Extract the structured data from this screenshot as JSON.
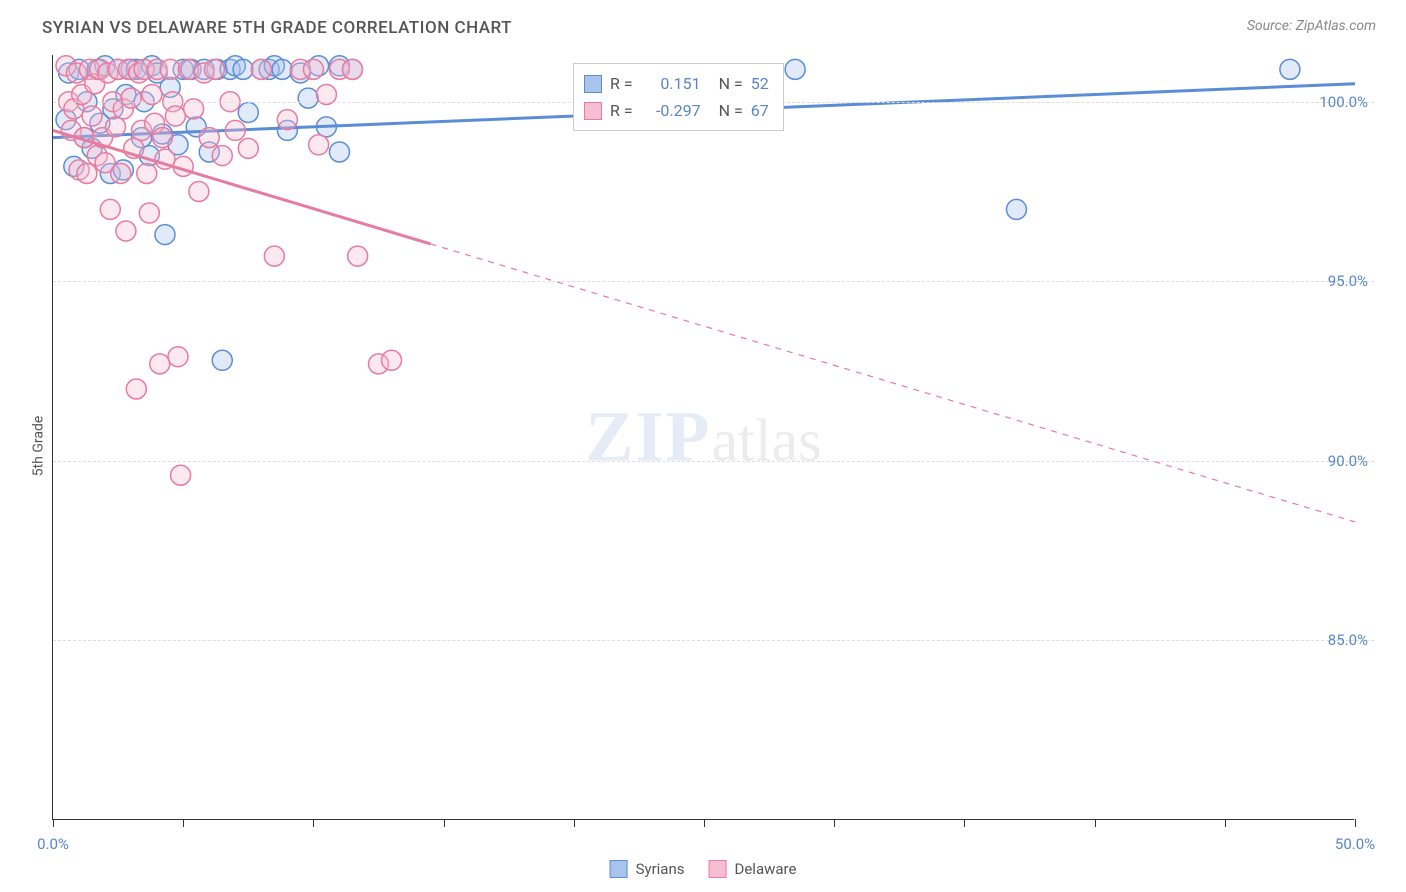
{
  "title": "SYRIAN VS DELAWARE 5TH GRADE CORRELATION CHART",
  "source": "Source: ZipAtlas.com",
  "y_axis_label": "5th Grade",
  "watermark_zip": "ZIP",
  "watermark_atlas": "atlas",
  "chart": {
    "type": "scatter",
    "xlim": [
      0,
      50
    ],
    "ylim": [
      80,
      101.3
    ],
    "x_ticks": [
      0,
      5,
      10,
      15,
      20,
      25,
      30,
      35,
      40,
      45,
      50
    ],
    "x_tick_labels": {
      "0": "0.0%",
      "50": "50.0%"
    },
    "y_ticks": [
      85,
      90,
      95,
      100
    ],
    "y_tick_labels": [
      "85.0%",
      "90.0%",
      "95.0%",
      "100.0%"
    ],
    "grid_color": "#dddddd",
    "background_color": "#ffffff",
    "marker_radius": 10,
    "marker_fill_opacity": 0.35,
    "marker_stroke_width": 1.5,
    "series": [
      {
        "name": "Syrians",
        "color": "#5b8dd6",
        "fill": "#a8c4ea",
        "R": "0.151",
        "N": "52",
        "trend": {
          "x1": 0,
          "y1": 99.0,
          "x2": 50,
          "y2": 100.5,
          "solid_until_x": 50,
          "width": 3
        },
        "points": [
          [
            0.5,
            99.5
          ],
          [
            0.6,
            100.8
          ],
          [
            0.8,
            98.2
          ],
          [
            1.0,
            100.9
          ],
          [
            1.2,
            99.0
          ],
          [
            1.3,
            100.0
          ],
          [
            1.5,
            98.7
          ],
          [
            1.7,
            100.9
          ],
          [
            1.8,
            99.4
          ],
          [
            2.0,
            101.0
          ],
          [
            2.2,
            98.0
          ],
          [
            2.3,
            99.8
          ],
          [
            2.5,
            100.9
          ],
          [
            2.7,
            98.1
          ],
          [
            2.8,
            100.2
          ],
          [
            3.0,
            100.9
          ],
          [
            3.2,
            100.9
          ],
          [
            3.4,
            99.0
          ],
          [
            3.5,
            100.0
          ],
          [
            3.7,
            98.5
          ],
          [
            3.8,
            101.0
          ],
          [
            4.0,
            100.8
          ],
          [
            4.2,
            99.1
          ],
          [
            4.3,
            96.3
          ],
          [
            4.5,
            100.4
          ],
          [
            4.8,
            98.8
          ],
          [
            5.0,
            100.9
          ],
          [
            5.3,
            100.9
          ],
          [
            5.5,
            99.3
          ],
          [
            5.8,
            100.9
          ],
          [
            6.0,
            98.6
          ],
          [
            6.3,
            100.9
          ],
          [
            6.5,
            92.8
          ],
          [
            6.8,
            100.9
          ],
          [
            7.0,
            101.0
          ],
          [
            7.3,
            100.9
          ],
          [
            7.5,
            99.7
          ],
          [
            8.0,
            100.9
          ],
          [
            8.3,
            100.9
          ],
          [
            8.5,
            101.0
          ],
          [
            8.8,
            100.9
          ],
          [
            9.0,
            99.2
          ],
          [
            9.5,
            100.8
          ],
          [
            9.8,
            100.1
          ],
          [
            10.2,
            101.0
          ],
          [
            10.5,
            99.3
          ],
          [
            11.0,
            98.6
          ],
          [
            11.0,
            101.0
          ],
          [
            11.5,
            100.9
          ],
          [
            28.5,
            100.9
          ],
          [
            37.0,
            97.0
          ],
          [
            47.5,
            100.9
          ]
        ]
      },
      {
        "name": "Delaware",
        "color": "#e77ba0",
        "fill": "#f7bdd0",
        "R": "-0.297",
        "N": "67",
        "trend": {
          "x1": 0,
          "y1": 99.2,
          "x2": 50,
          "y2": 88.3,
          "solid_until_x": 14.5,
          "width": 3
        },
        "points": [
          [
            0.5,
            101.0
          ],
          [
            0.6,
            100.0
          ],
          [
            0.7,
            99.2
          ],
          [
            0.8,
            99.8
          ],
          [
            0.9,
            100.8
          ],
          [
            1.0,
            98.1
          ],
          [
            1.1,
            100.2
          ],
          [
            1.2,
            99.0
          ],
          [
            1.3,
            98.0
          ],
          [
            1.4,
            100.9
          ],
          [
            1.5,
            99.6
          ],
          [
            1.6,
            100.5
          ],
          [
            1.7,
            98.5
          ],
          [
            1.8,
            100.9
          ],
          [
            1.9,
            99.0
          ],
          [
            2.0,
            98.3
          ],
          [
            2.1,
            100.8
          ],
          [
            2.2,
            97.0
          ],
          [
            2.3,
            100.0
          ],
          [
            2.4,
            99.3
          ],
          [
            2.5,
            100.9
          ],
          [
            2.6,
            98.0
          ],
          [
            2.7,
            99.8
          ],
          [
            2.8,
            96.4
          ],
          [
            2.9,
            100.9
          ],
          [
            3.0,
            100.1
          ],
          [
            3.1,
            98.7
          ],
          [
            3.2,
            92.0
          ],
          [
            3.3,
            100.8
          ],
          [
            3.4,
            99.2
          ],
          [
            3.5,
            100.9
          ],
          [
            3.6,
            98.0
          ],
          [
            3.7,
            96.9
          ],
          [
            3.8,
            100.2
          ],
          [
            3.9,
            99.4
          ],
          [
            4.0,
            100.9
          ],
          [
            4.1,
            92.7
          ],
          [
            4.2,
            99.0
          ],
          [
            4.3,
            98.4
          ],
          [
            4.5,
            100.9
          ],
          [
            4.6,
            100.0
          ],
          [
            4.7,
            99.6
          ],
          [
            4.8,
            92.9
          ],
          [
            4.9,
            89.6
          ],
          [
            5.0,
            98.2
          ],
          [
            5.2,
            100.9
          ],
          [
            5.4,
            99.8
          ],
          [
            5.6,
            97.5
          ],
          [
            5.8,
            100.8
          ],
          [
            6.0,
            99.0
          ],
          [
            6.2,
            100.9
          ],
          [
            6.5,
            98.5
          ],
          [
            6.8,
            100.0
          ],
          [
            7.0,
            99.2
          ],
          [
            7.5,
            98.7
          ],
          [
            8.0,
            100.9
          ],
          [
            8.5,
            95.7
          ],
          [
            9.0,
            99.5
          ],
          [
            9.5,
            100.9
          ],
          [
            10.0,
            100.9
          ],
          [
            10.2,
            98.8
          ],
          [
            10.5,
            100.2
          ],
          [
            11.0,
            100.9
          ],
          [
            11.5,
            100.9
          ],
          [
            11.7,
            95.7
          ],
          [
            12.5,
            92.7
          ],
          [
            13.0,
            92.8
          ]
        ]
      }
    ]
  },
  "legend": {
    "stats_label_R": "R =",
    "stats_label_N": "N =",
    "items": [
      "Syrians",
      "Delaware"
    ]
  }
}
